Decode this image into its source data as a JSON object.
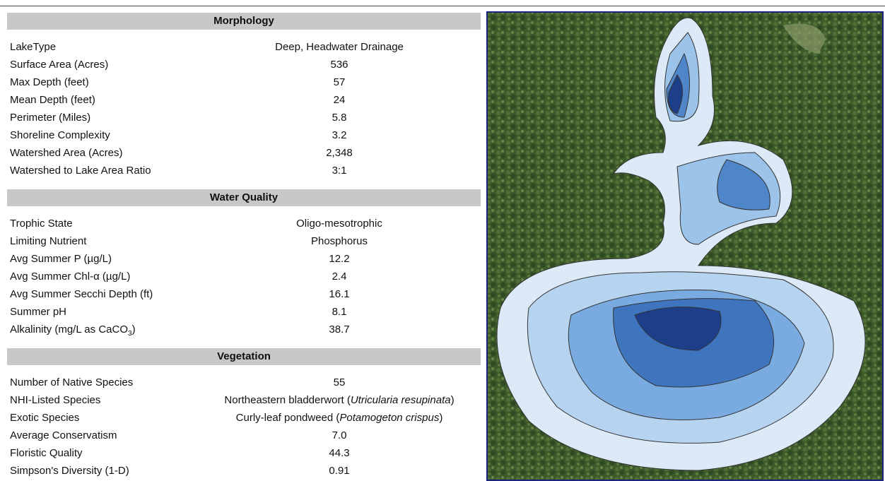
{
  "sections": [
    {
      "title": "Morphology",
      "rows": [
        {
          "label": "LakeType",
          "value": "Deep, Headwater Drainage"
        },
        {
          "label": "Surface Area (Acres)",
          "value": "536"
        },
        {
          "label": "Max Depth (feet)",
          "value": "57"
        },
        {
          "label": "Mean Depth (feet)",
          "value": "24"
        },
        {
          "label": "Perimeter (Miles)",
          "value": "5.8"
        },
        {
          "label": "Shoreline Complexity",
          "value": "3.2"
        },
        {
          "label": "Watershed Area (Acres)",
          "value": "2,348"
        },
        {
          "label": "Watershed to Lake Area Ratio",
          "value": "3:1"
        }
      ]
    },
    {
      "title": "Water Quality",
      "rows": [
        {
          "label": "Trophic State",
          "value": "Oligo-mesotrophic"
        },
        {
          "label": "Limiting Nutrient",
          "value": "Phosphorus"
        },
        {
          "label": "Avg Summer P (µg/L)",
          "value": "12.2"
        },
        {
          "label": "Avg Summer Chl-α (µg/L)",
          "value": "2.4"
        },
        {
          "label": "Avg Summer Secchi Depth (ft)",
          "value": "16.1"
        },
        {
          "label": "Summer pH",
          "value": "8.1"
        },
        {
          "label": {
            "parts": [
              {
                "text": "Alkalinity (mg/L as CaCO"
              },
              {
                "text": "3",
                "sub": true
              },
              {
                "text": ")"
              }
            ]
          },
          "value": "38.7"
        }
      ]
    },
    {
      "title": "Vegetation",
      "rows": [
        {
          "label": "Number of Native Species",
          "value": "55"
        },
        {
          "label": "NHI-Listed Species",
          "value": {
            "parts": [
              {
                "text": "Northeastern bladderwort ("
              },
              {
                "text": "Utricularia resupinata",
                "italic": true
              },
              {
                "text": ")"
              }
            ]
          }
        },
        {
          "label": "Exotic Species",
          "value": {
            "parts": [
              {
                "text": "Curly-leaf pondweed ("
              },
              {
                "text": "Potamogeton crispus",
                "italic": true
              },
              {
                "text": ")"
              }
            ]
          }
        },
        {
          "label": "Average Conservatism",
          "value": "7.0"
        },
        {
          "label": "Floristic Quality",
          "value": "44.3"
        },
        {
          "label": "Simpson's Diversity (1-D)",
          "value": "0.91"
        }
      ]
    }
  ]
}
